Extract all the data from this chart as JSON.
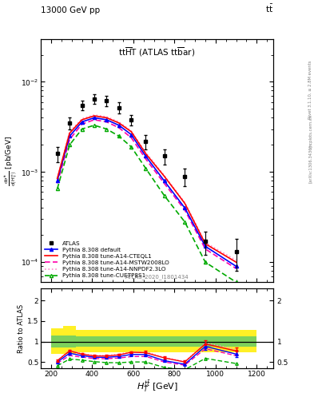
{
  "top_label_left": "13000 GeV pp",
  "top_label_right": "tt",
  "rivet_label": "Rivet 3.1.10, ≥ 2.8M events",
  "arxiv_label": "[arXiv:1306.3436]",
  "mcplots_label": "mcplots.cern.ch",
  "inspire_label": "ATLAS_2020_I1801434",
  "ylabel_ratio": "Ratio to ATLAS",
  "ylim_main": [
    6e-05,
    0.03
  ],
  "ylim_ratio": [
    0.35,
    2.3
  ],
  "xbins": [
    200,
    260,
    320,
    380,
    440,
    500,
    560,
    620,
    700,
    800,
    900,
    1000,
    1200
  ],
  "x_centers": [
    230,
    290,
    350,
    410,
    470,
    530,
    590,
    660,
    750,
    850,
    950,
    1100
  ],
  "atlas_data": [
    0.0016,
    0.0035,
    0.0055,
    0.0065,
    0.0062,
    0.0052,
    0.0038,
    0.0022,
    0.0015,
    0.0009,
    0.00017,
    0.00013
  ],
  "atlas_err": [
    0.0003,
    0.0005,
    0.0007,
    0.0008,
    0.0008,
    0.0007,
    0.0005,
    0.0004,
    0.0003,
    0.0002,
    5e-05,
    5e-05
  ],
  "py_default": [
    0.0008,
    0.0025,
    0.0036,
    0.004,
    0.0038,
    0.0033,
    0.0026,
    0.0015,
    0.0008,
    0.0004,
    0.00015,
    9e-05
  ],
  "py_cteql1": [
    0.00085,
    0.0027,
    0.0038,
    0.0042,
    0.004,
    0.0035,
    0.0028,
    0.0016,
    0.0009,
    0.00045,
    0.00016,
    0.0001
  ],
  "py_mstw": [
    0.00075,
    0.0023,
    0.0034,
    0.0038,
    0.0036,
    0.0031,
    0.0024,
    0.0014,
    0.00075,
    0.00038,
    0.00014,
    8.5e-05
  ],
  "py_nnpdf": [
    0.00085,
    0.0028,
    0.0039,
    0.0043,
    0.0041,
    0.0036,
    0.00285,
    0.00165,
    0.00092,
    0.00046,
    0.000165,
    0.000105
  ],
  "py_cuetp": [
    0.00065,
    0.002,
    0.003,
    0.0033,
    0.003,
    0.0025,
    0.0019,
    0.0011,
    0.00055,
    0.00028,
    0.0001,
    6e-05
  ],
  "green_band_lo": [
    0.85,
    0.85,
    0.88,
    0.88,
    0.88,
    0.88,
    0.88,
    0.88,
    0.88,
    0.88,
    0.88,
    0.88
  ],
  "green_band_hi": [
    1.15,
    1.15,
    1.12,
    1.12,
    1.12,
    1.12,
    1.12,
    1.12,
    1.12,
    1.12,
    1.12,
    1.12
  ],
  "yellow_band_lo": [
    0.7,
    0.7,
    0.73,
    0.73,
    0.73,
    0.73,
    0.73,
    0.73,
    0.73,
    0.73,
    0.73,
    0.73
  ],
  "yellow_band_hi": [
    1.32,
    1.38,
    1.29,
    1.29,
    1.29,
    1.29,
    1.29,
    1.29,
    1.29,
    1.29,
    1.29,
    1.29
  ],
  "color_default": "#0000ff",
  "color_cteql1": "#ff0000",
  "color_mstw": "#ff00aa",
  "color_nnpdf": "#ff88cc",
  "color_cuetp": "#00aa00",
  "color_atlas": "#000000",
  "color_green_band": "#66cc66",
  "color_yellow_band": "#ffee00"
}
